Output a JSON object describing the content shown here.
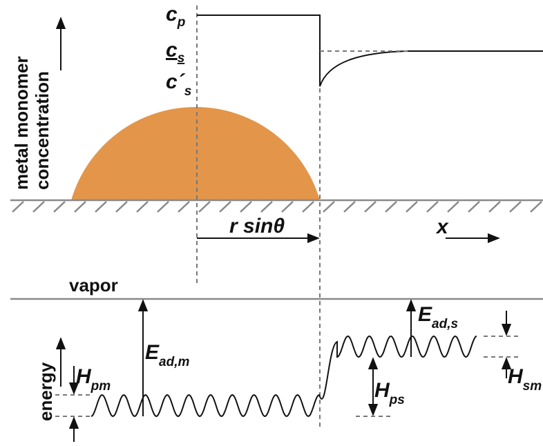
{
  "concentration_axis": {
    "label_line1": "metal monomer",
    "label_line2": "concentration"
  },
  "levels": {
    "cp": {
      "main": "c",
      "sub": "p"
    },
    "cs": {
      "main": "c",
      "sub": "s"
    },
    "cs_prime": {
      "main": "c´",
      "sub": "s"
    }
  },
  "distance": "r sinθ",
  "x_axis": "x",
  "vapor": "vapor",
  "energy_axis": "energy",
  "energies": {
    "ead_m": {
      "main": "E",
      "sub": "ad,m"
    },
    "ead_s": {
      "main": "E",
      "sub": "ad,s"
    },
    "hpm": {
      "main": "H",
      "sub": "pm"
    },
    "hps": {
      "main": "H",
      "sub": "ps"
    },
    "hsm": {
      "main": "H",
      "sub": "sm"
    }
  }
}
